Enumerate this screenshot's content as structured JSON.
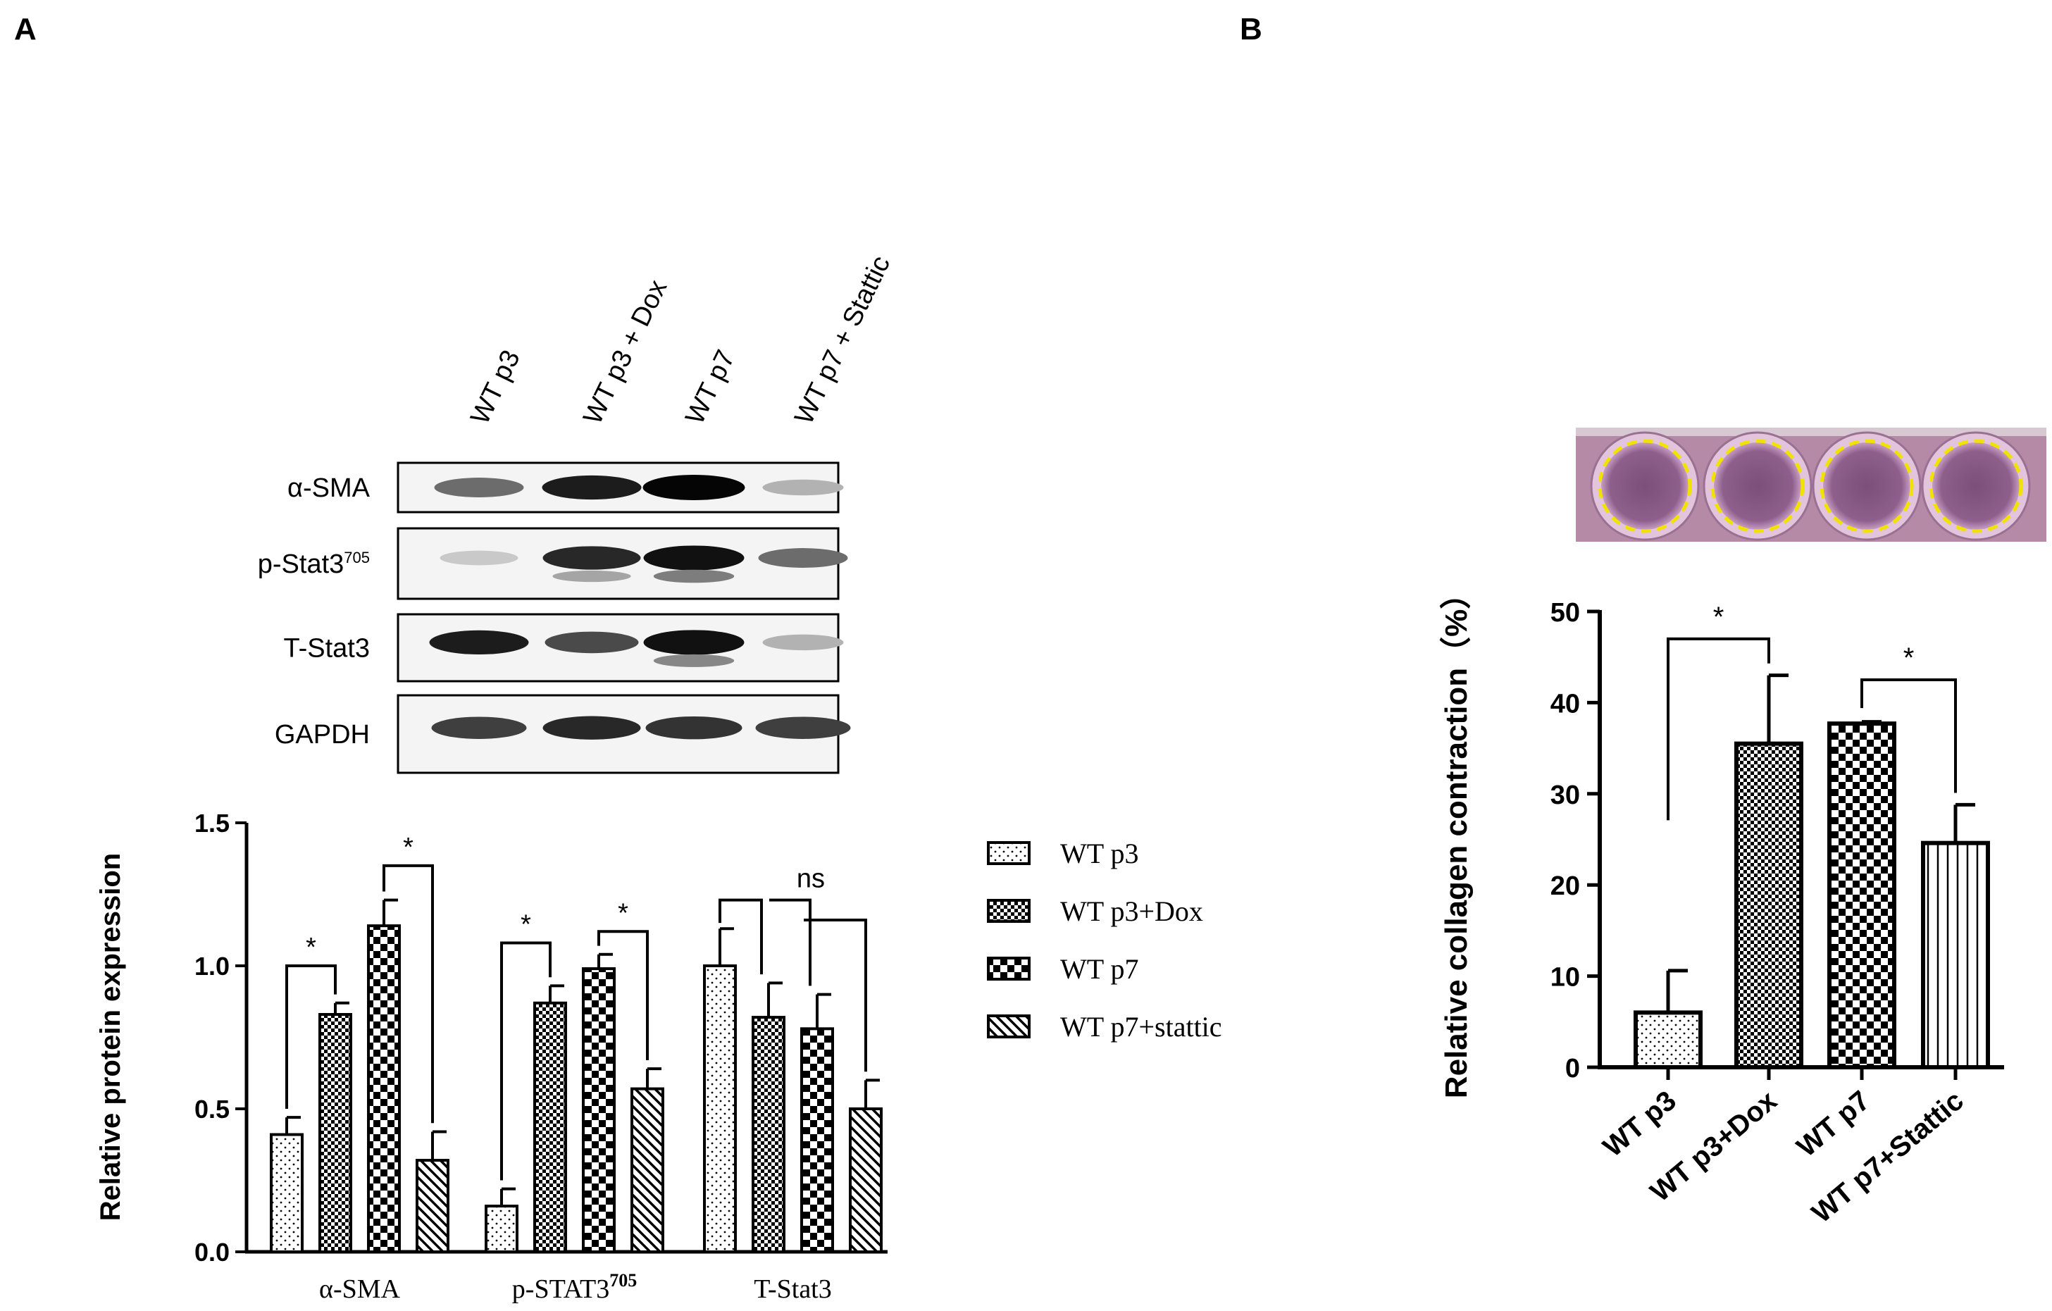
{
  "panels": {
    "a_label": "A",
    "b_label": "B"
  },
  "western_blot": {
    "lanes": [
      "WT p3",
      "WT p3 + Dox",
      "WT p7",
      "WT p7 + Stattic"
    ],
    "rows": [
      {
        "label": "α-SMA",
        "label_sup": "",
        "intensities": [
          0.55,
          0.9,
          1.0,
          0.25
        ],
        "lower_band": [
          0,
          0,
          0,
          0
        ]
      },
      {
        "label": "p-Stat3",
        "label_sup": "705",
        "intensities": [
          0.15,
          0.85,
          0.95,
          0.55
        ],
        "lower_band": [
          0,
          0.35,
          0.55,
          0
        ]
      },
      {
        "label": "T-Stat3",
        "label_sup": "",
        "intensities": [
          0.9,
          0.7,
          0.95,
          0.25
        ],
        "lower_band": [
          0,
          0,
          0.5,
          0
        ]
      },
      {
        "label": "GAPDH",
        "label_sup": "",
        "intensities": [
          0.75,
          0.85,
          0.8,
          0.75
        ],
        "lower_band": [
          0,
          0,
          0,
          0
        ]
      }
    ]
  },
  "plate_image": {
    "wells": 4,
    "plate_color": "#b48aa6",
    "circle_color": "#f2e200"
  },
  "colors": {
    "bar_stroke": "#000000",
    "axis": "#000000"
  },
  "chart_data": [
    {
      "type": "bar",
      "ylabel": "Relative protein expression",
      "ylim": [
        0,
        1.5
      ],
      "yticks": [
        "0.0",
        "0.5",
        "1.0",
        "1.5"
      ],
      "categories": [
        "α-SMA",
        "p-STAT3",
        "T-Stat3"
      ],
      "category_sups": [
        "",
        "705",
        ""
      ],
      "series": [
        {
          "name": "WT p3",
          "pattern": "dots",
          "values": [
            0.41,
            0.16,
            1.0
          ],
          "errors": [
            0.06,
            0.06,
            0.13
          ]
        },
        {
          "name": "WT p3+Dox",
          "pattern": "fine-check",
          "values": [
            0.83,
            0.87,
            0.82
          ],
          "errors": [
            0.04,
            0.06,
            0.12
          ]
        },
        {
          "name": "WT p7",
          "pattern": "check",
          "values": [
            1.14,
            0.99,
            0.78
          ],
          "errors": [
            0.09,
            0.05,
            0.12
          ]
        },
        {
          "name": "WT p7+stattic",
          "pattern": "diag",
          "values": [
            0.32,
            0.57,
            0.5
          ],
          "errors": [
            0.1,
            0.07,
            0.1
          ]
        }
      ],
      "legend_position": "right",
      "annotations": [
        {
          "text": "*",
          "group": 0,
          "from": 0,
          "to": 1,
          "y": 1.0
        },
        {
          "text": "*",
          "group": 0,
          "from": 2,
          "to": 3,
          "y": 1.35
        },
        {
          "text": "*",
          "group": 1,
          "from": 0,
          "to": 1,
          "y": 1.08
        },
        {
          "text": "*",
          "group": 1,
          "from": 2,
          "to": 3,
          "y": 1.12
        },
        {
          "text": "ns",
          "group": 2,
          "bracket": "multi",
          "y": 1.23
        }
      ]
    },
    {
      "type": "bar",
      "ylabel": "Relative collagen contraction（%）",
      "ylim": [
        0,
        50
      ],
      "yticks": [
        "0",
        "10",
        "20",
        "30",
        "40",
        "50"
      ],
      "categories": [
        "WT p3",
        "WT p3+Dox",
        "WT p7",
        "WT p7+Stattic"
      ],
      "series": [
        {
          "values": [
            6,
            35.5,
            37.7,
            24.6
          ],
          "errors": [
            4.6,
            7.5,
            0.2,
            4.2
          ],
          "patterns": [
            "dots",
            "fine-check",
            "check",
            "vlines"
          ]
        }
      ],
      "annotations": [
        {
          "text": "*",
          "from": 0,
          "to": 1,
          "y": 47
        },
        {
          "text": "*",
          "from": 2,
          "to": 3,
          "y": 42.5
        }
      ]
    }
  ]
}
